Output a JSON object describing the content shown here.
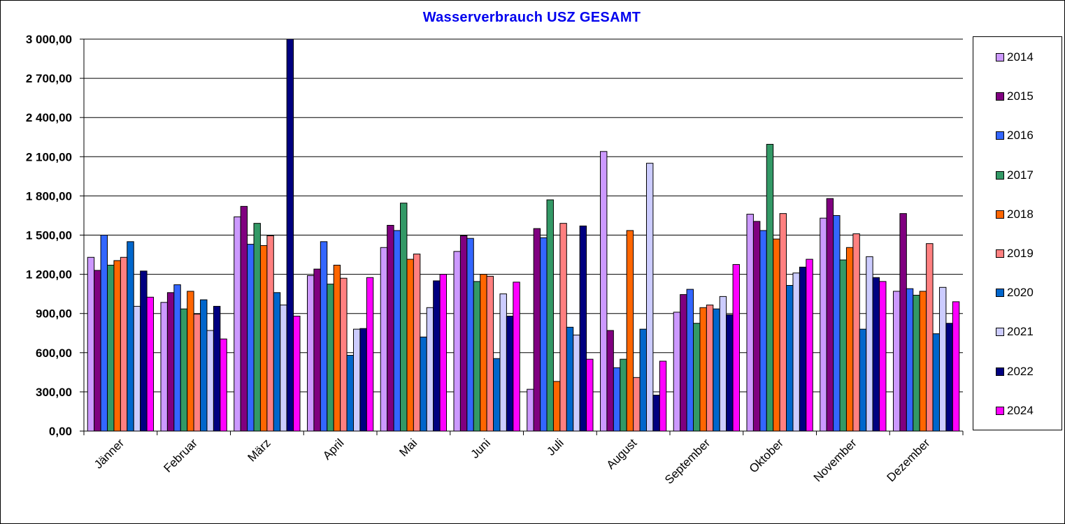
{
  "chart_data": {
    "type": "bar",
    "title": "Wasserverbrauch  USZ GESAMT",
    "xlabel": "",
    "ylabel": "",
    "ylim": [
      0,
      3000
    ],
    "yticks": [
      "0,00",
      "300,00",
      "600,00",
      "900,00",
      "1 200,00",
      "1 500,00",
      "1 800,00",
      "2 100,00",
      "2 400,00",
      "2 700,00",
      "3 000,00"
    ],
    "ytick_values": [
      0,
      300,
      600,
      900,
      1200,
      1500,
      1800,
      2100,
      2400,
      2700,
      3000
    ],
    "grid": true,
    "legend_position": "right",
    "categories": [
      "Jänner",
      "Februar",
      "März",
      "April",
      "Mai",
      "Juni",
      "Juli",
      "August",
      "September",
      "Oktober",
      "November",
      "Dezember"
    ],
    "series": [
      {
        "name": "2014",
        "color": "#cc99ff",
        "values": [
          1330,
          985,
          1640,
          1190,
          1405,
          1375,
          320,
          2140,
          910,
          1660,
          1630,
          1070
        ]
      },
      {
        "name": "2015",
        "color": "#800080",
        "values": [
          1230,
          1060,
          1720,
          1240,
          1575,
          1495,
          1550,
          770,
          1045,
          1605,
          1780,
          1665
        ]
      },
      {
        "name": "2016",
        "color": "#3366ff",
        "values": [
          1500,
          1120,
          1430,
          1450,
          1535,
          1475,
          1480,
          485,
          1085,
          1535,
          1650,
          1090
        ]
      },
      {
        "name": "2017",
        "color": "#339966",
        "values": [
          1270,
          935,
          1590,
          1125,
          1745,
          1145,
          1770,
          550,
          825,
          2195,
          1310,
          1040
        ]
      },
      {
        "name": "2018",
        "color": "#ff6600",
        "values": [
          1305,
          1070,
          1420,
          1270,
          1315,
          1200,
          380,
          1535,
          945,
          1470,
          1405,
          1070
        ]
      },
      {
        "name": "2019",
        "color": "#ff8080",
        "values": [
          1330,
          895,
          1495,
          1170,
          1355,
          1185,
          1590,
          410,
          965,
          1665,
          1510,
          1435
        ]
      },
      {
        "name": "2020",
        "color": "#0066cc",
        "values": [
          1450,
          1005,
          1060,
          580,
          720,
          555,
          795,
          780,
          935,
          1115,
          780,
          745
        ]
      },
      {
        "name": "2021",
        "color": "#ccccff",
        "values": [
          955,
          770,
          965,
          780,
          945,
          1050,
          735,
          2050,
          1030,
          1210,
          1335,
          1100
        ]
      },
      {
        "name": "2022",
        "color": "#000080",
        "values": [
          1225,
          955,
          3000,
          785,
          1150,
          880,
          1570,
          275,
          890,
          1255,
          1175,
          825
        ]
      },
      {
        "name": "2024",
        "color": "#ff00ff",
        "values": [
          1025,
          705,
          880,
          1175,
          1200,
          1140,
          550,
          535,
          1275,
          1315,
          1145,
          990
        ]
      }
    ]
  }
}
